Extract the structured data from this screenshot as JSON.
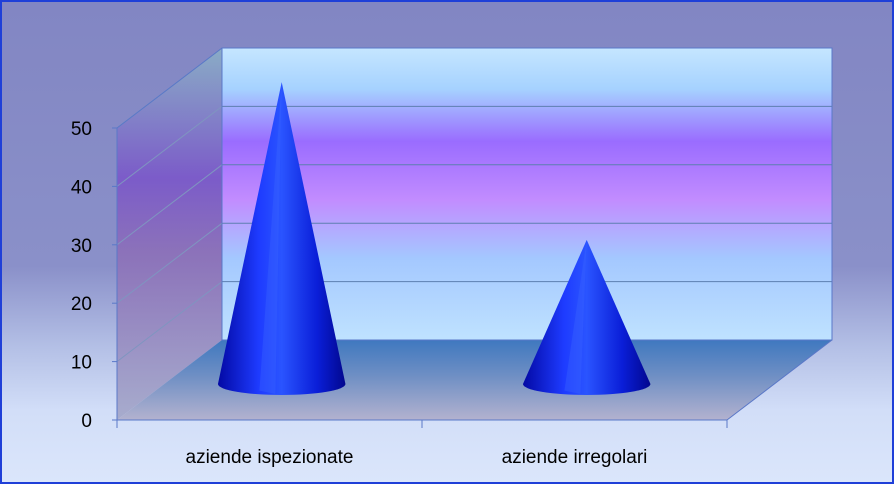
{
  "chart_data": {
    "type": "bar",
    "style": "3d-cone",
    "categories": [
      "aziende ispezionate",
      "aziende irregolari"
    ],
    "values": [
      51,
      24
    ],
    "ylim": [
      0,
      50
    ],
    "yticks": [
      "0",
      "10",
      "20",
      "30",
      "40",
      "50"
    ],
    "grid": true,
    "legend": "none",
    "title": "",
    "xlabel": "",
    "ylabel": ""
  },
  "colors": {
    "border": "#1f3fd8",
    "bar": "#0a14e0",
    "background_top": "#8a8ec8",
    "background_bottom": "#d6e4fb"
  }
}
